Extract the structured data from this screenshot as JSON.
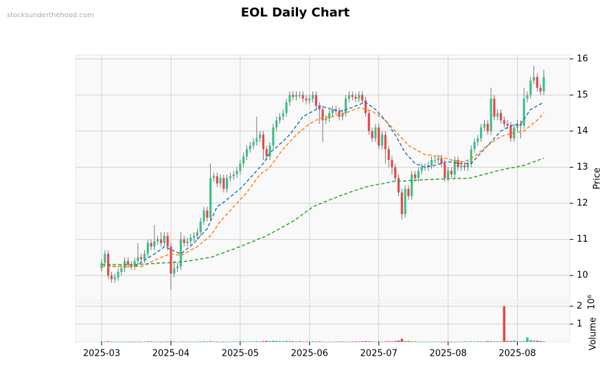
{
  "chart_data": {
    "type": "candlestick",
    "title": "EOL Daily Chart",
    "watermark": "stocksunderthehood.com",
    "ylabel": "Price",
    "volume_label": "Volume",
    "volume_offset": "10⁶",
    "up_color": "#3cc08a",
    "down_color": "#e8474b",
    "grid": true,
    "ylim": [
      9.3,
      16.11
    ],
    "yticks": [
      10,
      11,
      12,
      13,
      14,
      15,
      16
    ],
    "volume_ylim": [
      0,
      2.19
    ],
    "volume_yticks": [
      1,
      2
    ],
    "categories": [
      "2025-03",
      null,
      null,
      null,
      null,
      null,
      null,
      null,
      null,
      null,
      null,
      null,
      null,
      null,
      null,
      null,
      null,
      null,
      null,
      null,
      null,
      "2025-04",
      null,
      null,
      null,
      null,
      null,
      null,
      null,
      null,
      null,
      null,
      null,
      null,
      null,
      null,
      null,
      null,
      null,
      null,
      null,
      null,
      "2025-05",
      null,
      null,
      null,
      null,
      null,
      null,
      null,
      null,
      null,
      null,
      null,
      null,
      null,
      null,
      null,
      null,
      null,
      null,
      null,
      null,
      "2025-06",
      null,
      null,
      null,
      null,
      null,
      null,
      null,
      null,
      null,
      null,
      null,
      null,
      null,
      null,
      null,
      null,
      null,
      null,
      null,
      null,
      "2025-07",
      null,
      null,
      null,
      null,
      null,
      null,
      null,
      null,
      null,
      null,
      null,
      null,
      null,
      null,
      null,
      null,
      null,
      null,
      null,
      null,
      "2025-08",
      null,
      null,
      null,
      null,
      null,
      null,
      null,
      null,
      null,
      null,
      null,
      null,
      null,
      null,
      null,
      null,
      null,
      null,
      null,
      null,
      "2025-08",
      null,
      null,
      null,
      null,
      null,
      null,
      null,
      null
    ],
    "open": [
      10.2,
      10.35,
      10.6,
      10.0,
      9.9,
      9.95,
      10.1,
      10.2,
      10.4,
      10.3,
      10.25,
      10.4,
      10.5,
      10.45,
      10.6,
      10.9,
      10.8,
      10.95,
      11.0,
      10.9,
      11.1,
      10.8,
      10.05,
      10.2,
      10.25,
      11.0,
      10.9,
      10.95,
      11.05,
      11.1,
      11.2,
      11.5,
      11.8,
      11.6,
      12.7,
      12.75,
      12.55,
      12.7,
      12.4,
      12.7,
      12.75,
      12.8,
      12.9,
      13.1,
      13.3,
      13.5,
      13.6,
      13.7,
      13.8,
      13.9,
      13.5,
      13.3,
      13.6,
      14.1,
      14.3,
      14.4,
      14.5,
      14.8,
      15.0,
      14.95,
      15.0,
      15.0,
      14.9,
      14.85,
      14.9,
      15.0,
      14.7,
      14.6,
      14.3,
      14.35,
      14.5,
      14.6,
      14.55,
      14.4,
      14.5,
      14.9,
      15.0,
      14.95,
      14.9,
      15.0,
      14.85,
      14.5,
      14.0,
      13.8,
      14.1,
      13.6,
      13.9,
      13.5,
      13.2,
      13.0,
      12.7,
      12.3,
      11.7,
      12.4,
      12.2,
      12.8,
      12.7,
      12.9,
      13.0,
      13.0,
      13.05,
      13.2,
      13.2,
      13.25,
      13.1,
      12.7,
      12.9,
      12.8,
      13.2,
      13.0,
      13.05,
      13.0,
      13.1,
      13.5,
      13.7,
      13.8,
      14.1,
      14.2,
      14.0,
      14.9,
      14.4,
      14.5,
      14.3,
      14.2,
      14.15,
      13.8,
      14.1,
      14.2,
      14.15,
      14.9,
      15.0,
      15.4,
      15.5,
      15.2,
      15.1
    ],
    "high": [
      10.45,
      10.7,
      10.7,
      10.1,
      10.05,
      10.2,
      10.3,
      10.5,
      10.5,
      10.4,
      10.5,
      10.9,
      10.6,
      10.7,
      11.0,
      11.0,
      11.4,
      11.1,
      11.2,
      11.2,
      11.2,
      10.9,
      10.4,
      10.35,
      11.2,
      11.1,
      11.05,
      11.15,
      11.2,
      11.3,
      11.6,
      11.9,
      11.9,
      13.1,
      12.85,
      12.85,
      12.8,
      12.8,
      12.8,
      12.85,
      12.9,
      13.0,
      13.2,
      13.4,
      13.6,
      13.7,
      13.8,
      14.4,
      14.0,
      14.0,
      13.6,
      13.7,
      14.2,
      14.4,
      14.5,
      14.6,
      14.9,
      15.1,
      15.1,
      15.1,
      15.1,
      15.1,
      15.0,
      15.0,
      15.1,
      15.1,
      14.8,
      14.7,
      14.45,
      14.6,
      14.7,
      14.7,
      14.65,
      14.6,
      15.0,
      15.1,
      15.1,
      15.05,
      15.1,
      15.1,
      14.95,
      14.6,
      14.1,
      14.2,
      14.2,
      14.0,
      14.0,
      13.6,
      13.3,
      13.1,
      12.8,
      12.4,
      12.5,
      12.5,
      12.9,
      12.9,
      13.0,
      13.1,
      13.1,
      13.15,
      13.3,
      13.3,
      13.35,
      13.35,
      13.2,
      13.0,
      13.0,
      13.3,
      13.3,
      13.15,
      13.15,
      13.2,
      13.6,
      13.8,
      13.9,
      14.2,
      14.3,
      14.3,
      15.2,
      15.0,
      14.6,
      14.6,
      14.4,
      14.3,
      14.25,
      14.2,
      14.3,
      14.3,
      15.2,
      15.1,
      15.5,
      15.8,
      15.6,
      15.3,
      15.7
    ],
    "low": [
      10.1,
      10.25,
      9.9,
      9.8,
      9.8,
      9.85,
      10.0,
      10.1,
      10.2,
      10.15,
      10.15,
      10.3,
      10.35,
      10.35,
      10.5,
      10.7,
      10.7,
      10.85,
      10.8,
      10.8,
      10.7,
      9.6,
      9.95,
      10.1,
      10.15,
      10.8,
      10.8,
      10.85,
      10.95,
      11.0,
      11.1,
      11.4,
      11.5,
      11.5,
      12.6,
      12.45,
      12.45,
      12.3,
      12.3,
      12.6,
      12.65,
      12.7,
      12.8,
      13.0,
      13.2,
      13.4,
      13.5,
      13.6,
      13.7,
      13.2,
      13.2,
      13.2,
      13.5,
      14.0,
      14.2,
      14.3,
      14.4,
      14.7,
      14.85,
      14.85,
      14.9,
      14.8,
      14.75,
      14.75,
      14.8,
      14.6,
      14.2,
      13.7,
      14.2,
      14.25,
      14.4,
      14.45,
      14.3,
      14.3,
      14.4,
      14.8,
      14.85,
      14.8,
      14.8,
      14.75,
      14.4,
      13.9,
      13.7,
      13.7,
      13.5,
      13.5,
      13.1,
      13.0,
      12.8,
      12.6,
      12.2,
      11.55,
      11.6,
      12.1,
      12.1,
      12.6,
      12.6,
      12.8,
      12.9,
      12.9,
      12.95,
      13.1,
      13.1,
      13.0,
      12.6,
      12.6,
      12.7,
      12.7,
      12.9,
      12.9,
      12.9,
      12.9,
      13.0,
      13.4,
      13.6,
      13.7,
      14.0,
      13.9,
      13.9,
      14.3,
      14.3,
      14.2,
      14.1,
      14.05,
      13.7,
      13.7,
      14.0,
      13.8,
      14.05,
      14.8,
      14.9,
      15.3,
      15.1,
      15.0,
      15.0
    ],
    "close": [
      10.35,
      10.6,
      10.0,
      9.9,
      9.95,
      10.1,
      10.2,
      10.4,
      10.3,
      10.25,
      10.4,
      10.5,
      10.45,
      10.6,
      10.9,
      10.8,
      10.95,
      11.0,
      10.9,
      11.1,
      10.8,
      10.05,
      10.2,
      10.25,
      11.0,
      10.9,
      10.95,
      11.05,
      11.1,
      11.2,
      11.5,
      11.8,
      11.6,
      12.7,
      12.75,
      12.55,
      12.7,
      12.4,
      12.7,
      12.75,
      12.8,
      12.9,
      13.1,
      13.3,
      13.5,
      13.6,
      13.7,
      13.8,
      13.9,
      13.5,
      13.3,
      13.6,
      14.1,
      14.3,
      14.4,
      14.5,
      14.8,
      15.0,
      14.95,
      15.0,
      15.0,
      14.9,
      14.85,
      14.9,
      15.0,
      14.7,
      14.6,
      14.3,
      14.35,
      14.5,
      14.6,
      14.55,
      14.4,
      14.5,
      14.9,
      15.0,
      14.95,
      14.9,
      15.0,
      14.85,
      14.5,
      14.0,
      13.8,
      14.1,
      13.6,
      13.9,
      13.5,
      13.2,
      13.0,
      12.7,
      12.3,
      11.7,
      12.4,
      12.2,
      12.8,
      12.7,
      12.9,
      13.0,
      13.0,
      13.05,
      13.2,
      13.2,
      13.25,
      13.1,
      12.7,
      12.9,
      12.8,
      13.2,
      13.0,
      13.05,
      13.0,
      13.1,
      13.5,
      13.7,
      13.8,
      14.1,
      14.2,
      14.0,
      14.9,
      14.4,
      14.5,
      14.3,
      14.2,
      14.15,
      13.8,
      14.1,
      14.2,
      14.15,
      14.9,
      15.0,
      15.4,
      15.5,
      15.2,
      15.1,
      15.5
    ],
    "volume": [
      0.03,
      0.02,
      0.04,
      0.02,
      0.01,
      0.02,
      0.01,
      0.02,
      0.02,
      0.01,
      0.02,
      0.03,
      0.01,
      0.02,
      0.04,
      0.03,
      0.02,
      0.02,
      0.01,
      0.03,
      0.02,
      0.05,
      0.02,
      0.01,
      0.03,
      0.02,
      0.01,
      0.02,
      0.01,
      0.03,
      0.02,
      0.04,
      0.02,
      0.05,
      0.03,
      0.02,
      0.01,
      0.02,
      0.01,
      0.02,
      0.03,
      0.02,
      0.04,
      0.03,
      0.02,
      0.02,
      0.03,
      0.04,
      0.03,
      0.05,
      0.06,
      0.05,
      0.07,
      0.06,
      0.05,
      0.04,
      0.06,
      0.05,
      0.04,
      0.03,
      0.05,
      0.02,
      0.02,
      0.03,
      0.04,
      0.02,
      0.03,
      0.02,
      0.01,
      0.02,
      0.02,
      0.01,
      0.02,
      0.03,
      0.02,
      0.02,
      0.03,
      0.02,
      0.03,
      0.04,
      0.05,
      0.04,
      0.03,
      0.02,
      0.03,
      0.02,
      0.03,
      0.04,
      0.03,
      0.05,
      0.08,
      0.18,
      0.06,
      0.05,
      0.04,
      0.03,
      0.02,
      0.01,
      0.02,
      0.01,
      0.02,
      0.03,
      0.02,
      0.01,
      0.02,
      0.03,
      0.02,
      0.01,
      0.02,
      0.01,
      0.03,
      0.02,
      0.03,
      0.02,
      0.04,
      0.03,
      0.02,
      0.05,
      0.04,
      0.03,
      0.04,
      0.03,
      2.0,
      0.06,
      0.05,
      0.08,
      0.04,
      0.03,
      0.05,
      0.25,
      0.1,
      0.08,
      0.07,
      0.05,
      0.04
    ],
    "series": [
      {
        "color": "#1f77b4",
        "values": [
          10.3,
          10.3,
          10.28,
          10.26,
          10.25,
          10.25,
          10.25,
          10.25,
          10.25,
          10.25,
          10.25,
          10.3,
          10.36,
          10.42,
          10.48,
          10.54,
          10.6,
          10.66,
          10.72,
          10.8,
          10.76,
          10.72,
          10.68,
          10.64,
          10.6,
          10.67,
          10.75,
          10.82,
          10.9,
          11.0,
          11.1,
          11.2,
          11.3,
          11.5,
          11.7,
          11.9,
          11.97,
          12.03,
          12.1,
          12.18,
          12.25,
          12.33,
          12.4,
          12.5,
          12.6,
          12.7,
          12.8,
          12.9,
          13.0,
          13.1,
          13.25,
          13.4,
          13.48,
          13.55,
          13.64,
          13.72,
          13.81,
          13.9,
          14.02,
          14.15,
          14.27,
          14.4,
          14.45,
          14.5,
          14.55,
          14.6,
          14.7,
          14.68,
          14.65,
          14.63,
          14.6,
          14.58,
          14.57,
          14.55,
          14.59,
          14.63,
          14.66,
          14.7,
          14.73,
          14.77,
          14.8,
          14.73,
          14.67,
          14.6,
          14.5,
          14.4,
          14.3,
          14.17,
          14.03,
          13.9,
          13.73,
          13.57,
          13.4,
          13.3,
          13.2,
          13.1,
          13.07,
          13.03,
          13.0,
          13.02,
          13.03,
          13.05,
          13.08,
          13.1,
          13.13,
          13.15,
          13.14,
          13.13,
          13.11,
          13.1,
          13.1,
          13.1,
          13.1,
          13.2,
          13.3,
          13.4,
          13.5,
          13.6,
          13.7,
          13.8,
          13.9,
          14.0,
          14.05,
          14.1,
          14.15,
          14.17,
          14.18,
          14.2,
          14.33,
          14.47,
          14.6,
          14.65,
          14.7,
          14.75,
          14.8
        ]
      },
      {
        "color": "#ff7f0e",
        "values": [
          10.25,
          10.25,
          10.25,
          10.25,
          10.25,
          10.25,
          10.25,
          10.25,
          10.25,
          10.25,
          10.25,
          10.25,
          10.25,
          10.29,
          10.33,
          10.38,
          10.42,
          10.46,
          10.5,
          10.53,
          10.57,
          10.6,
          10.58,
          10.57,
          10.55,
          10.6,
          10.65,
          10.7,
          10.75,
          10.8,
          10.88,
          10.95,
          11.03,
          11.1,
          11.23,
          11.37,
          11.5,
          11.6,
          11.7,
          11.8,
          11.9,
          12.0,
          12.1,
          12.2,
          12.3,
          12.43,
          12.55,
          12.68,
          12.8,
          12.87,
          12.93,
          13.0,
          13.13,
          13.25,
          13.38,
          13.5,
          13.6,
          13.7,
          13.8,
          13.9,
          13.98,
          14.05,
          14.13,
          14.2,
          14.25,
          14.3,
          14.35,
          14.36,
          14.38,
          14.39,
          14.4,
          14.43,
          14.45,
          14.48,
          14.5,
          14.54,
          14.58,
          14.61,
          14.65,
          14.63,
          14.6,
          14.58,
          14.55,
          14.49,
          14.43,
          14.36,
          14.3,
          14.2,
          14.1,
          14.0,
          13.9,
          13.8,
          13.7,
          13.6,
          13.55,
          13.5,
          13.45,
          13.4,
          13.35,
          13.34,
          13.33,
          13.31,
          13.3,
          13.28,
          13.25,
          13.23,
          13.2,
          13.19,
          13.18,
          13.16,
          13.15,
          13.2,
          13.25,
          13.3,
          13.38,
          13.45,
          13.53,
          13.6,
          13.66,
          13.73,
          13.79,
          13.85,
          13.88,
          13.9,
          13.93,
          13.95,
          13.97,
          13.98,
          14.0,
          14.08,
          14.15,
          14.23,
          14.3,
          14.4,
          14.5
        ]
      },
      {
        "color": "#2ca02c",
        "values": [
          10.3,
          10.3,
          10.3,
          10.3,
          10.3,
          10.3,
          10.3,
          10.3,
          10.3,
          10.3,
          10.3,
          10.31,
          10.31,
          10.32,
          10.32,
          10.33,
          10.33,
          10.34,
          10.34,
          10.35,
          10.35,
          10.36,
          10.37,
          10.37,
          10.38,
          10.39,
          10.4,
          10.41,
          10.43,
          10.44,
          10.46,
          10.47,
          10.49,
          10.5,
          10.53,
          10.57,
          10.6,
          10.63,
          10.67,
          10.7,
          10.73,
          10.77,
          10.8,
          10.84,
          10.88,
          10.91,
          10.95,
          10.99,
          11.03,
          11.06,
          11.1,
          11.15,
          11.2,
          11.25,
          11.3,
          11.35,
          11.4,
          11.45,
          11.5,
          11.57,
          11.63,
          11.7,
          11.77,
          11.83,
          11.9,
          11.94,
          11.98,
          12.01,
          12.05,
          12.09,
          12.13,
          12.16,
          12.2,
          12.23,
          12.26,
          12.3,
          12.33,
          12.36,
          12.39,
          12.42,
          12.45,
          12.47,
          12.49,
          12.51,
          12.53,
          12.54,
          12.56,
          12.58,
          12.6,
          12.61,
          12.61,
          12.62,
          12.62,
          12.63,
          12.63,
          12.64,
          12.65,
          12.65,
          12.65,
          12.66,
          12.66,
          12.66,
          12.67,
          12.67,
          12.67,
          12.68,
          12.68,
          12.68,
          12.69,
          12.69,
          12.69,
          12.7,
          12.7,
          12.73,
          12.75,
          12.78,
          12.8,
          12.83,
          12.85,
          12.88,
          12.9,
          12.92,
          12.94,
          12.96,
          12.98,
          12.99,
          13.01,
          13.03,
          13.05,
          13.08,
          13.12,
          13.15,
          13.18,
          13.22,
          13.25
        ]
      }
    ]
  }
}
